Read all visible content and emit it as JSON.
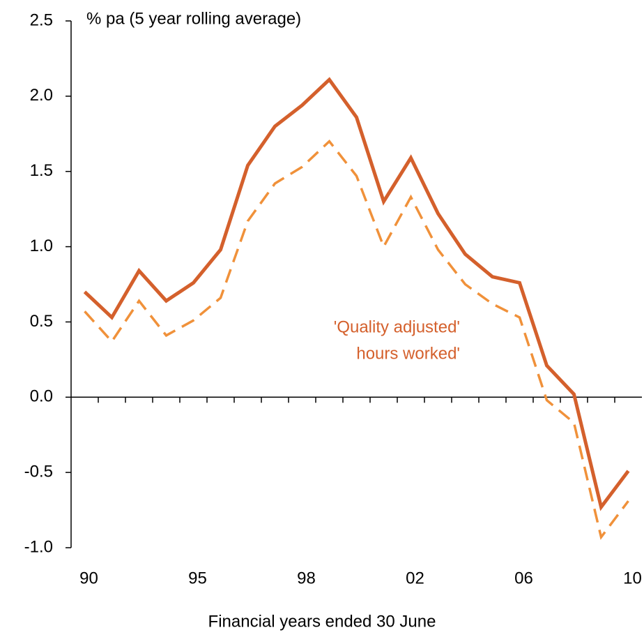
{
  "chart_data": {
    "type": "line",
    "y_label": "% pa (5 year rolling average)",
    "x_label": "Financial years ended 30 June",
    "annotation": [
      "'Quality adjusted'",
      "hours worked'"
    ],
    "categories": [
      "90",
      null,
      null,
      null,
      "95",
      null,
      null,
      null,
      "98",
      null,
      null,
      null,
      "02",
      null,
      null,
      null,
      "06",
      null,
      null,
      null,
      "10"
    ],
    "series": [
      {
        "color": "#d4602c",
        "style": "solid",
        "values": [
          0.7,
          0.53,
          0.84,
          0.64,
          0.76,
          0.98,
          1.54,
          1.8,
          1.94,
          2.11,
          1.86,
          1.3,
          1.59,
          1.22,
          0.95,
          0.8,
          0.76,
          0.21,
          0.02,
          -0.73,
          -0.49
        ]
      },
      {
        "color": "#f0913a",
        "style": "dashed",
        "values": [
          0.57,
          0.37,
          0.64,
          0.41,
          0.51,
          0.66,
          1.17,
          1.42,
          1.53,
          1.7,
          1.47,
          1.0,
          1.33,
          0.98,
          0.75,
          0.62,
          0.53,
          -0.02,
          -0.17,
          -0.93,
          -0.69
        ]
      }
    ],
    "ylim": [
      -1.0,
      2.5
    ],
    "yticks": [
      {
        "value": -1.0,
        "label": "-1.0"
      },
      {
        "value": -0.5,
        "label": "-0.5"
      },
      {
        "value": 0,
        "label": "0.0"
      },
      {
        "value": 0.5,
        "label": "0.5"
      },
      {
        "value": 1.0,
        "label": "1.0"
      },
      {
        "value": 1.5,
        "label": "1.5"
      },
      {
        "value": 2.0,
        "label": "2.0"
      },
      {
        "value": 2.5,
        "label": "2.5"
      }
    ],
    "annotation_color": "#d4602c"
  }
}
